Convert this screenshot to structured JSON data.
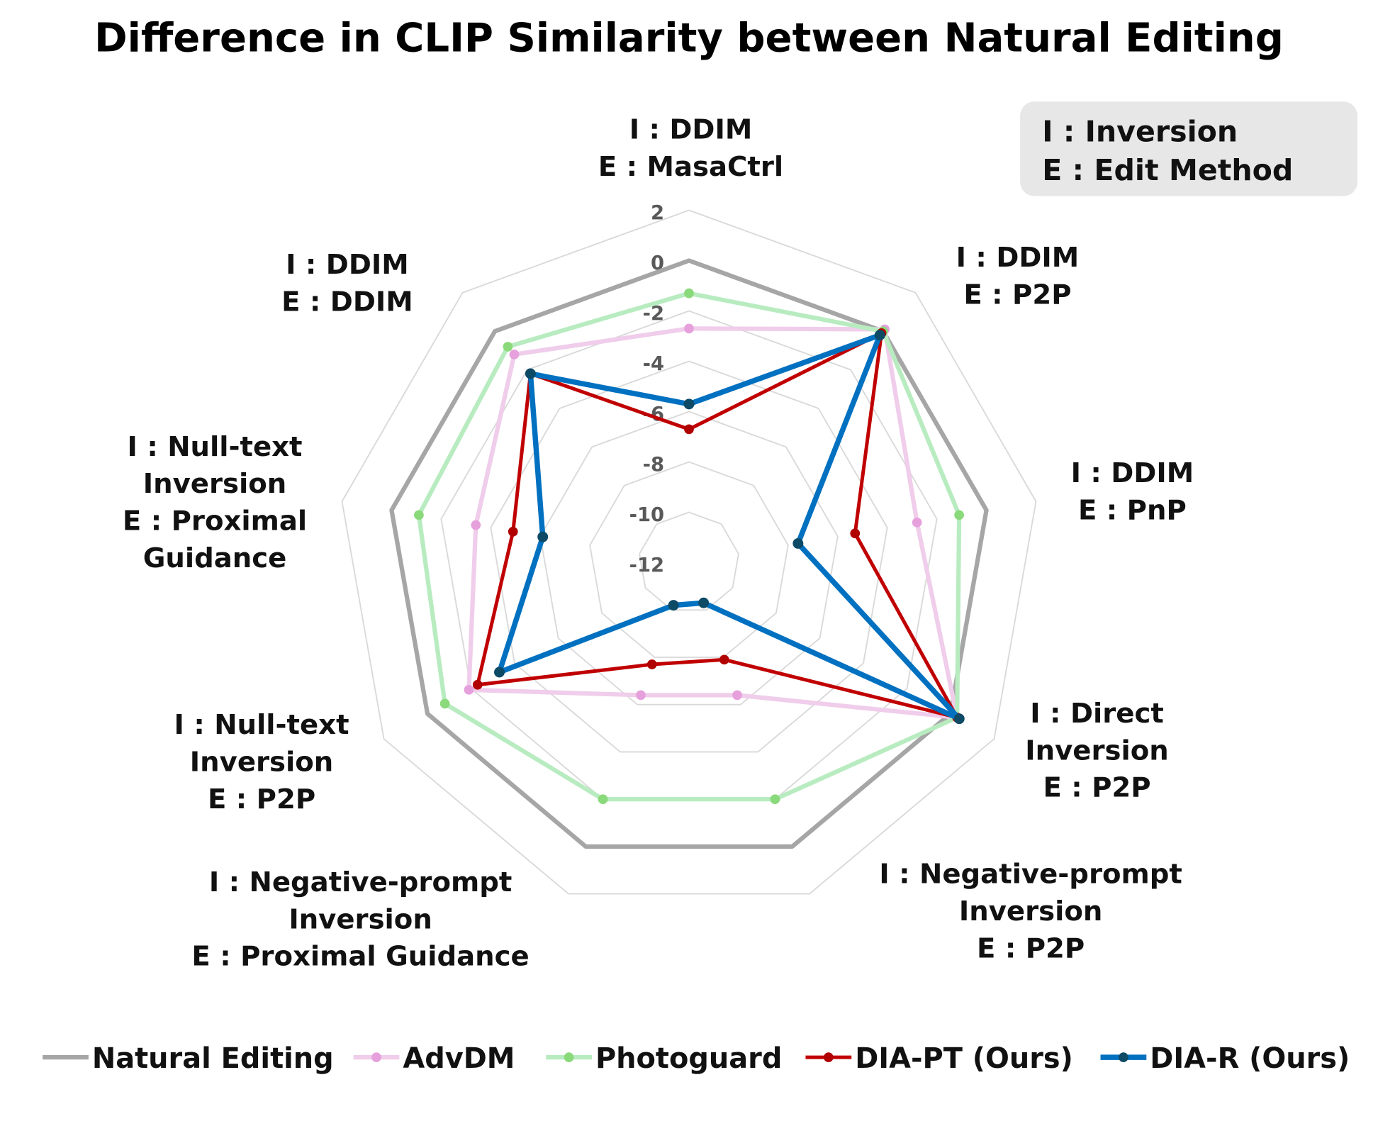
{
  "chart_data": {
    "type": "radar",
    "title": "Difference in CLIP Similarity between Natural Editing",
    "note_box": [
      "I : Inversion",
      "E : Edit Method"
    ],
    "axes": [
      [
        "I : DDIM",
        "E : MasaCtrl"
      ],
      [
        "I : DDIM",
        "E : P2P"
      ],
      [
        "I : DDIM",
        "E : PnP"
      ],
      [
        "I : Direct",
        "Inversion",
        "E : P2P"
      ],
      [
        "I : Negative-prompt",
        "Inversion",
        "E : P2P"
      ],
      [
        "I : Negative-prompt",
        "Inversion",
        "E : Proximal Guidance"
      ],
      [
        "I : Null-text",
        "Inversion",
        "E : P2P"
      ],
      [
        "I : Null-text",
        "Inversion",
        "E : Proximal",
        "Guidance"
      ],
      [
        "I : DDIM",
        "E : DDIM"
      ]
    ],
    "range": [
      -12,
      2
    ],
    "ticks": [
      "2",
      "0",
      "-2",
      "-4",
      "-6",
      "-8",
      "-10",
      "-12"
    ],
    "tick_values": [
      2,
      0,
      -2,
      -4,
      -6,
      -8,
      -10,
      -12
    ],
    "grid": true,
    "legend_position": "bottom",
    "series": [
      {
        "name": "Natural Editing",
        "color": "#a6a6a6",
        "marker_color": "",
        "values": [
          0,
          0,
          0,
          0,
          0,
          0,
          0,
          0,
          0
        ]
      },
      {
        "name": "AdvDM",
        "color": "#f0cdeb",
        "marker_color": "#e6a0dc",
        "values": [
          -2.7,
          0.1,
          -2.8,
          0.3,
          -6.4,
          -6.4,
          -1.9,
          -3.4,
          -1.2
        ]
      },
      {
        "name": "Photoguard",
        "color": "#b8ecc0",
        "marker_color": "#8ad97a",
        "values": [
          -1.3,
          0,
          -1.1,
          0.3,
          -2.0,
          -2.0,
          -0.8,
          -1.1,
          -0.8
        ]
      },
      {
        "name": "DIA-PT (Ours)",
        "color": "#c00000",
        "marker_color": "#b00000",
        "values": [
          -6.7,
          -0.1,
          -5.3,
          0.3,
          -7.9,
          -7.7,
          -2.3,
          -4.9,
          -2.2
        ]
      },
      {
        "name": "DIA-R (Ours)",
        "color": "#0070c0",
        "marker_color": "#0d4a66",
        "values": [
          -5.7,
          -0.2,
          -7.6,
          0.4,
          -10.3,
          -10.2,
          -3.3,
          -6.1,
          -2.2
        ]
      }
    ]
  }
}
